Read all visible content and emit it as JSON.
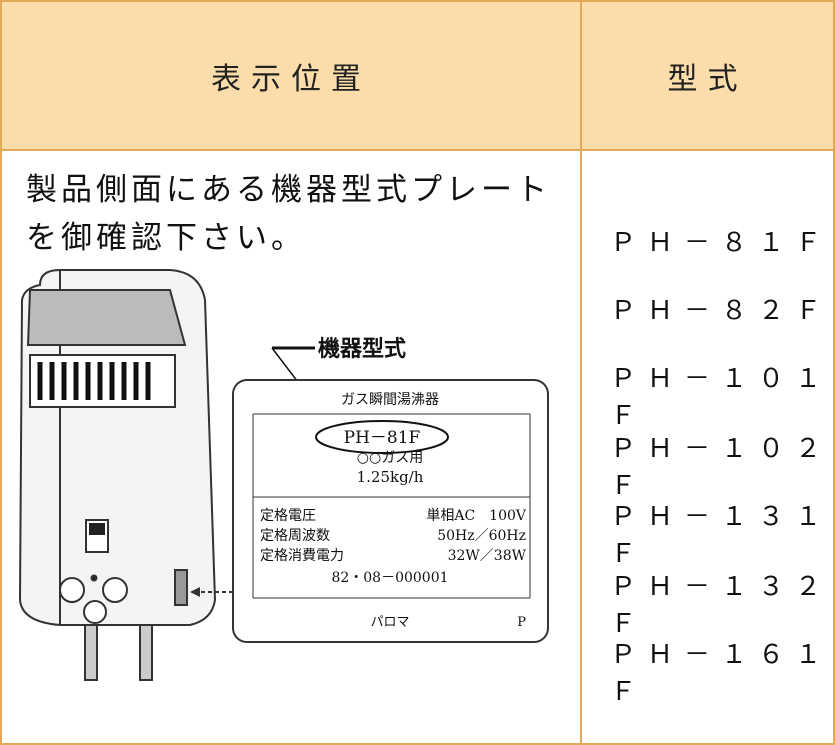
{
  "table": {
    "header": [
      "表示位置",
      "型式"
    ],
    "description": "製品側面にある機器型式プレートを御確認下さい。",
    "models": [
      "ＰＨ－８１Ｆ",
      "ＰＨ－８２Ｆ",
      "ＰＨ－１０１Ｆ",
      "ＰＨ－１０２Ｆ",
      "ＰＨ－１３１Ｆ",
      "ＰＨ－１３２Ｆ",
      "ＰＨ－１６１Ｆ"
    ]
  },
  "illustration": {
    "callout": "機器型式",
    "plate": {
      "title": "ガス瞬間湯沸器",
      "model": "PH－81F",
      "gas": "○○ガス用",
      "consumption": "1.25kg/h",
      "specs": [
        [
          "定格電圧",
          "単相AC　100V"
        ],
        [
          "定格周波数",
          "50Hz／60Hz"
        ],
        [
          "定格消費電力",
          "32W／38W"
        ]
      ],
      "serial": "82・08－000001",
      "maker": "パロマ",
      "mark": "P"
    }
  }
}
